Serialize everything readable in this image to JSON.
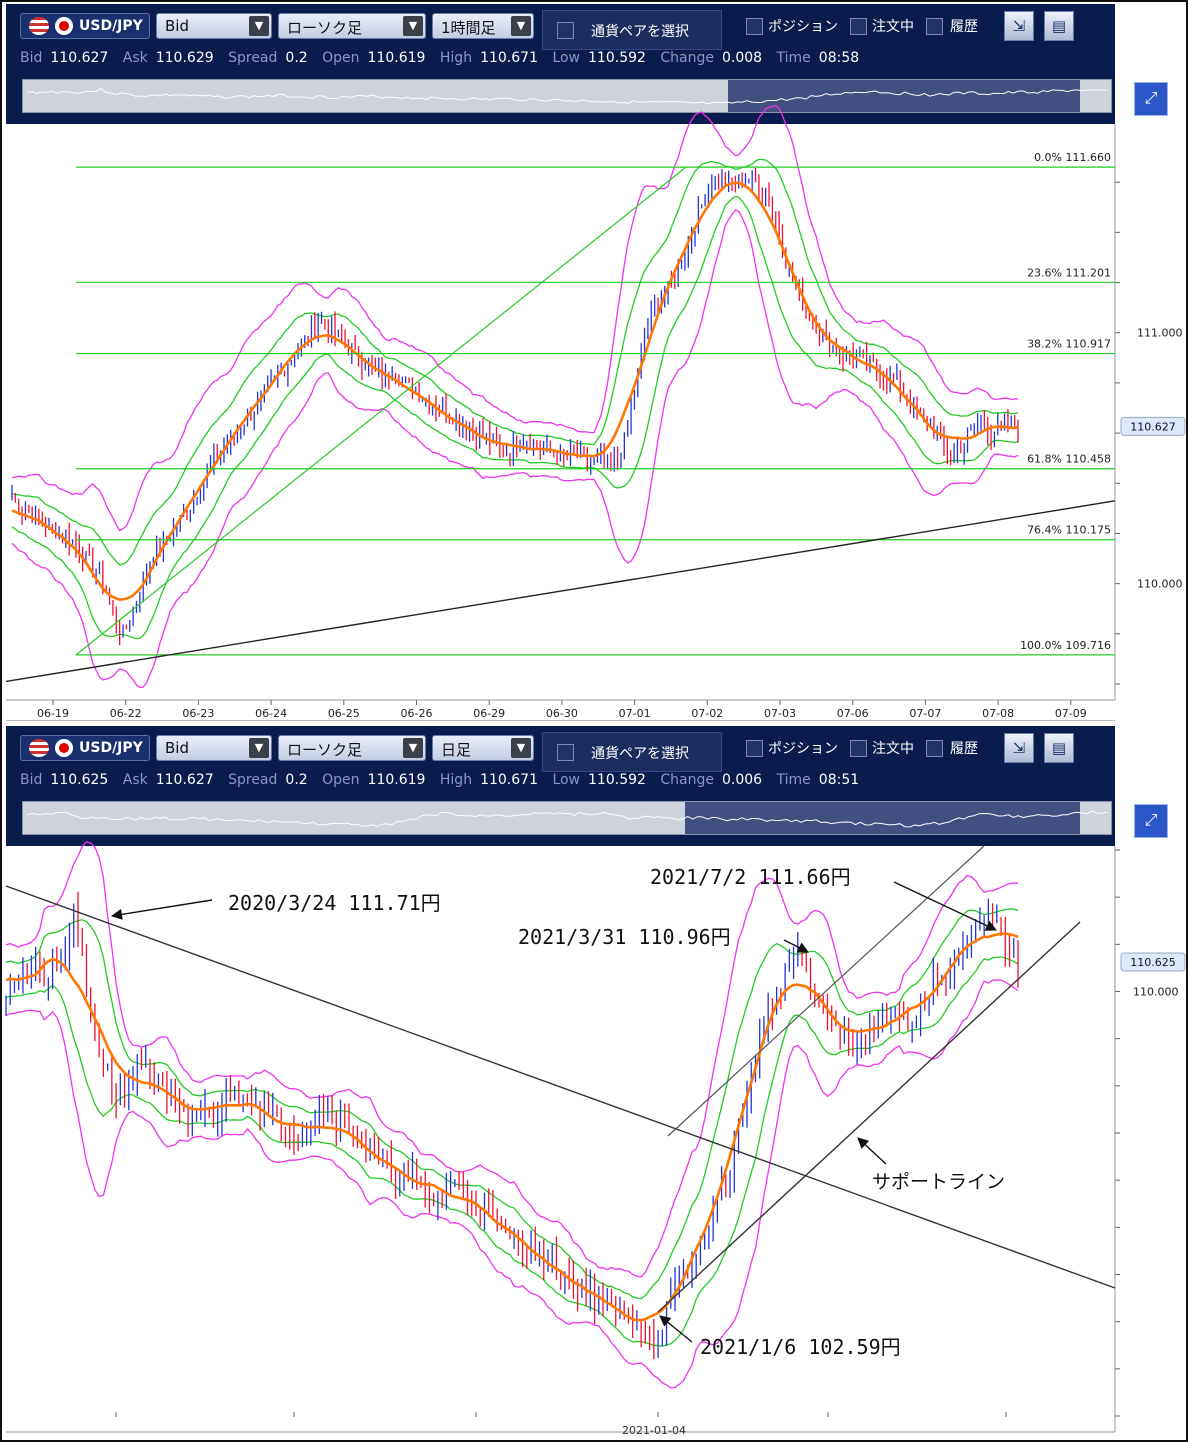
{
  "toolbar_top": {
    "pair": "USD/JPY",
    "price_type": "Bid",
    "chart_type": "ローソク足",
    "timeframe": "1時間足",
    "pair_select": "通貨ペアを選択",
    "positions": "ポジション",
    "orders": "注文中",
    "history": "履歴",
    "quote": {
      "bid_k": "Bid",
      "bid": "110.627",
      "ask_k": "Ask",
      "ask": "110.629",
      "spread_k": "Spread",
      "spread": "0.2",
      "open_k": "Open",
      "open": "110.619",
      "high_k": "High",
      "high": "110.671",
      "low_k": "Low",
      "low": "110.592",
      "change_k": "Change",
      "change": "0.008",
      "time_k": "Time",
      "time": "08:58"
    }
  },
  "toolbar_bottom": {
    "pair": "USD/JPY",
    "price_type": "Bid",
    "chart_type": "ローソク足",
    "timeframe": "日足",
    "pair_select": "通貨ペアを選択",
    "positions": "ポジション",
    "orders": "注文中",
    "history": "履歴",
    "quote": {
      "bid_k": "Bid",
      "bid": "110.625",
      "ask_k": "Ask",
      "ask": "110.627",
      "spread_k": "Spread",
      "spread": "0.2",
      "open_k": "Open",
      "open": "110.619",
      "high_k": "High",
      "high": "110.671",
      "low_k": "Low",
      "low": "110.592",
      "change_k": "Change",
      "change": "0.006",
      "time_k": "Time",
      "time": "08:51"
    }
  },
  "chart_data": [
    {
      "type": "candlestick",
      "timeframe": "1時間足",
      "x_ticks": [
        "06-19",
        "06-22",
        "06-23",
        "06-24",
        "06-25",
        "06-26",
        "06-29",
        "06-30",
        "07-01",
        "07-02",
        "07-03",
        "07-06",
        "07-07",
        "07-08",
        "07-09"
      ],
      "y_ticks": [
        "111.000",
        "110.000"
      ],
      "ylim": [
        109.6,
        111.8
      ],
      "current_price": "110.627",
      "fibonacci": [
        {
          "pct": "0.0%",
          "price": "111.660"
        },
        {
          "pct": "23.6%",
          "price": "111.201"
        },
        {
          "pct": "38.2%",
          "price": "110.917"
        },
        {
          "pct": "61.8%",
          "price": "110.458"
        },
        {
          "pct": "76.4%",
          "price": "110.175"
        },
        {
          "pct": "100.0%",
          "price": "109.716"
        }
      ],
      "close_series": [
        110.35,
        110.3,
        110.28,
        110.25,
        110.22,
        110.2,
        110.18,
        110.15,
        110.1,
        110.05,
        110.0,
        109.85,
        109.8,
        109.9,
        110.0,
        110.1,
        110.15,
        110.2,
        110.25,
        110.3,
        110.38,
        110.45,
        110.5,
        110.55,
        110.6,
        110.65,
        110.7,
        110.75,
        110.8,
        110.85,
        110.9,
        110.95,
        111.0,
        111.05,
        111.02,
        110.98,
        110.95,
        110.9,
        110.88,
        110.85,
        110.82,
        110.85,
        110.8,
        110.78,
        110.75,
        110.72,
        110.7,
        110.68,
        110.65,
        110.62,
        110.6,
        110.58,
        110.55,
        110.52,
        110.55,
        110.58,
        110.56,
        110.54,
        110.52,
        110.5,
        110.52,
        110.5,
        110.48,
        110.5,
        110.48,
        110.5,
        110.6,
        110.8,
        111.0,
        111.1,
        111.15,
        111.2,
        111.3,
        111.4,
        111.5,
        111.6,
        111.62,
        111.58,
        111.6,
        111.62,
        111.6,
        111.55,
        111.45,
        111.3,
        111.2,
        111.1,
        111.05,
        111.0,
        110.95,
        110.9,
        110.92,
        110.9,
        110.88,
        110.85,
        110.82,
        110.8,
        110.75,
        110.7,
        110.65,
        110.6,
        110.55,
        110.5,
        110.55,
        110.62,
        110.65,
        110.6,
        110.62,
        110.63,
        110.627
      ]
    },
    {
      "type": "candlestick",
      "timeframe": "日足",
      "x_ticks": [
        "2021-01-04"
      ],
      "y_ticks": [
        "110.000"
      ],
      "ylim": [
        101.0,
        113.0
      ],
      "current_price": "110.625",
      "annotations": [
        {
          "text": "2020/3/24 111.71円",
          "date": "2020-03-24",
          "price": 111.71
        },
        {
          "text": "2021/3/31 110.96円",
          "date": "2021-03-31",
          "price": 110.96
        },
        {
          "text": "2021/7/2 111.66円",
          "date": "2021-07-02",
          "price": 111.66
        },
        {
          "text": "2021/1/6 102.59円",
          "date": "2021-01-06",
          "price": 102.59
        },
        {
          "text": "サポートライン"
        }
      ],
      "close_series": [
        110.0,
        110.3,
        110.5,
        110.2,
        110.6,
        111.71,
        109.5,
        108.5,
        107.8,
        108.2,
        108.6,
        107.9,
        107.6,
        107.2,
        107.5,
        107.3,
        107.8,
        108.0,
        107.6,
        107.4,
        107.3,
        106.9,
        107.2,
        107.5,
        107.3,
        107.0,
        106.6,
        106.4,
        106.1,
        106.2,
        105.8,
        105.6,
        105.9,
        105.7,
        105.5,
        105.3,
        104.9,
        104.7,
        104.6,
        104.3,
        104.1,
        103.8,
        103.6,
        103.5,
        103.3,
        103.1,
        102.9,
        102.59,
        103.5,
        103.9,
        104.5,
        105.3,
        106.0,
        107.2,
        108.6,
        109.5,
        110.2,
        110.96,
        110.2,
        109.5,
        109.2,
        108.7,
        109.0,
        109.5,
        109.7,
        109.2,
        109.6,
        110.2,
        110.3,
        110.8,
        111.2,
        111.66,
        111.1,
        110.625
      ]
    }
  ]
}
